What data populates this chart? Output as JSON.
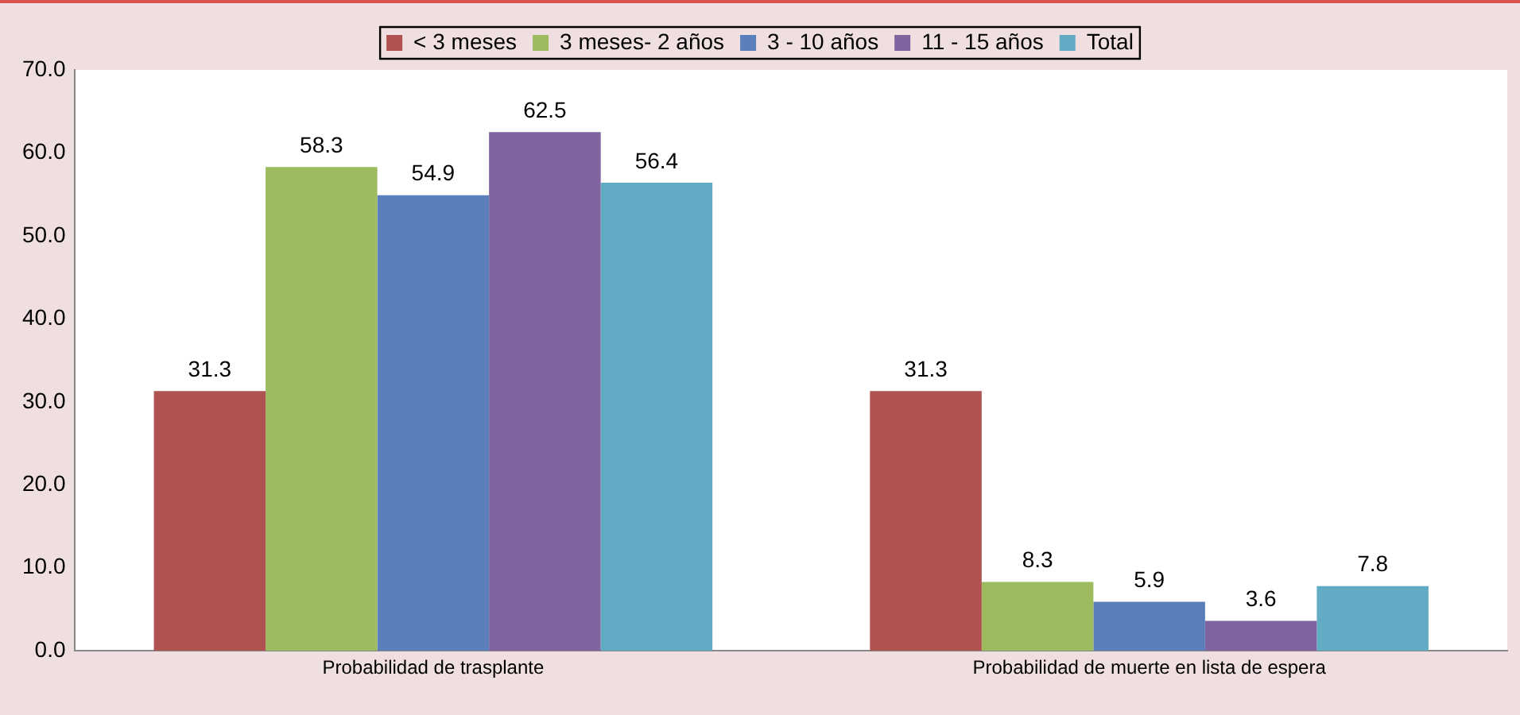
{
  "chart_data": {
    "type": "bar",
    "categories": [
      "Probabilidad de trasplante",
      "Probabilidad de muerte en lista de espera"
    ],
    "series": [
      {
        "name": "< 3 meses",
        "color": "#b0524f",
        "values": [
          31.3,
          31.3
        ]
      },
      {
        "name": "3 meses- 2 años",
        "color": "#9dbb5f",
        "values": [
          58.3,
          8.3
        ]
      },
      {
        "name": "3 - 10 años",
        "color": "#5a7fba",
        "values": [
          54.9,
          5.9
        ]
      },
      {
        "name": "11 - 15 años",
        "color": "#7f64a0",
        "values": [
          62.5,
          3.6
        ]
      },
      {
        "name": "Total",
        "color": "#62abc4",
        "values": [
          56.4,
          7.8
        ]
      }
    ],
    "ylim": [
      0,
      70
    ],
    "yticks": [
      {
        "value": 0,
        "label": "0.0"
      },
      {
        "value": 10,
        "label": "10.0"
      },
      {
        "value": 20,
        "label": "20.0"
      },
      {
        "value": 30,
        "label": "30.0"
      },
      {
        "value": 40,
        "label": "40.0"
      },
      {
        "value": 50,
        "label": "50.0"
      },
      {
        "value": 60,
        "label": "60.0"
      },
      {
        "value": 70,
        "label": "70.0"
      }
    ],
    "grid": false,
    "legend": "top",
    "data_labels": true
  }
}
